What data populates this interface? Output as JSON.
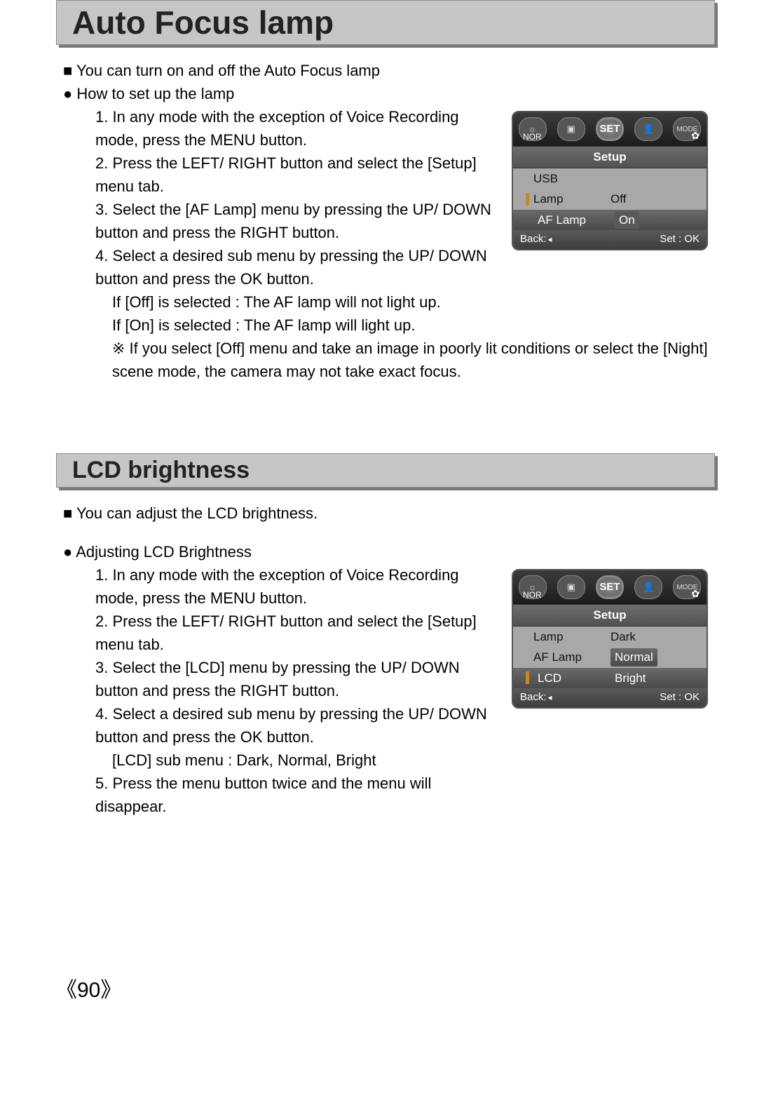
{
  "page_number": "《90》",
  "section1": {
    "title": "Auto Focus lamp",
    "intro": "You can turn on and off the Auto Focus lamp",
    "howto_label": "How to set up the lamp",
    "steps": [
      "1. In any mode with the exception of Voice Recording mode, press the MENU button.",
      "2. Press the LEFT/ RIGHT button and select the [Setup] menu tab.",
      "3. Select the [AF Lamp] menu by pressing the UP/ DOWN button and press the RIGHT button.",
      "4. Select a desired sub menu by pressing the UP/ DOWN button and press the OK button."
    ],
    "followups": [
      "If [Off] is selected : The AF lamp will not light up.",
      "If [On] is selected : The AF lamp will light up."
    ],
    "note": "If you select [Off] menu and take an image in poorly lit conditions or select the [Night] scene mode, the camera may not take exact focus.",
    "screen": {
      "nor": "NOR",
      "set": "SET",
      "mode": "MODE",
      "title": "Setup",
      "rows": [
        {
          "label": "USB",
          "value": "",
          "selected": false,
          "marker": false,
          "value_selected": false
        },
        {
          "label": "Lamp",
          "value": "Off",
          "selected": false,
          "marker": true,
          "value_selected": false
        },
        {
          "label": "AF Lamp",
          "value": "On",
          "selected": true,
          "marker": false,
          "value_selected": true
        }
      ],
      "back": "Back:",
      "ok": "Set : OK"
    }
  },
  "section2": {
    "title": "LCD brightness",
    "intro": "You can adjust the LCD brightness.",
    "howto_label": "Adjusting LCD Brightness",
    "steps": [
      "1. In any mode with the exception of Voice Recording mode, press the MENU button.",
      "2. Press the LEFT/ RIGHT button and select the [Setup] menu tab.",
      "3. Select the [LCD] menu by pressing the UP/ DOWN button and press the RIGHT button.",
      "4. Select a desired sub menu by pressing the UP/ DOWN button and press the OK button."
    ],
    "followups": [
      "[LCD] sub menu : Dark, Normal, Bright"
    ],
    "extra_step": "5. Press the menu button twice and the menu will disappear.",
    "screen": {
      "nor": "NOR",
      "set": "SET",
      "mode": "MODE",
      "title": "Setup",
      "rows": [
        {
          "label": "Lamp",
          "value": "Dark",
          "selected": false,
          "marker": false,
          "value_selected": false
        },
        {
          "label": "AF Lamp",
          "value": "Normal",
          "selected": false,
          "marker": false,
          "value_selected": true
        },
        {
          "label": "LCD",
          "value": "Bright",
          "selected": true,
          "marker": true,
          "value_selected": false
        }
      ],
      "back": "Back:",
      "ok": "Set : OK"
    }
  },
  "colors": {
    "titlebar_bg": "#c6c6c6",
    "titlebar_border": "#8a8a8a",
    "titlebar_shadow": "#7a7a7a",
    "text": "#000000",
    "screen_bg": "#9d9d9d",
    "screen_dark": "#3b3b3b",
    "marker": "#c38a2c"
  }
}
